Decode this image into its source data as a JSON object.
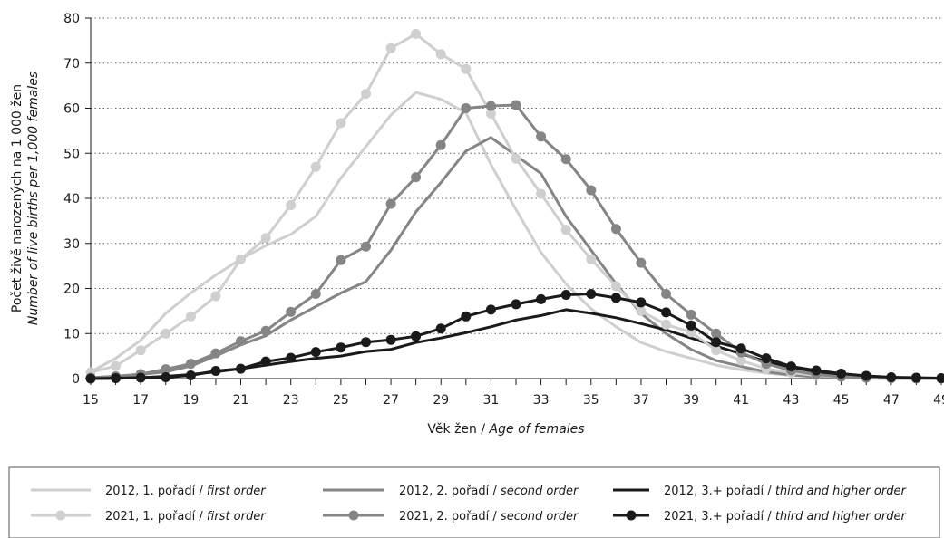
{
  "chart_data": {
    "type": "line",
    "title": "",
    "xlabel_cz": "Věk žen / ",
    "xlabel_en": "Age of females",
    "ylabel_cz": "Počet živě narozených na 1 000 žen",
    "ylabel_en": "Number of live births per 1,000 females",
    "xlim": [
      15,
      49
    ],
    "ylim": [
      0,
      80
    ],
    "xticks": [
      "15",
      "17",
      "19",
      "21",
      "23",
      "25",
      "27",
      "29",
      "31",
      "33",
      "35",
      "37",
      "39",
      "41",
      "43",
      "45",
      "47",
      "49"
    ],
    "yticks": [
      "0",
      "10",
      "20",
      "30",
      "40",
      "50",
      "60",
      "70",
      "80"
    ],
    "grid": "horizontal dotted",
    "legend_position": "bottom",
    "x": [
      15,
      16,
      17,
      18,
      19,
      20,
      21,
      22,
      23,
      24,
      25,
      26,
      27,
      28,
      29,
      30,
      31,
      32,
      33,
      34,
      35,
      36,
      37,
      38,
      39,
      40,
      41,
      42,
      43,
      44,
      45,
      46,
      47,
      48,
      49
    ],
    "series": [
      {
        "name_cz": "2012, 1. pořadí / ",
        "name_en": "first order",
        "color": "#cfcfcf",
        "markers": false,
        "values": [
          1.5,
          4.5,
          8.5,
          14.5,
          19,
          23,
          26.5,
          29.5,
          32,
          36,
          44.5,
          51.5,
          58.5,
          63.5,
          62,
          59,
          47.5,
          37.5,
          28,
          21,
          15.5,
          11.5,
          8,
          6,
          4.5,
          3,
          2,
          1.2,
          0.7,
          0.4,
          0.2,
          0.1,
          0.05,
          0.02,
          0.01
        ]
      },
      {
        "name_cz": "2012, 2. pořadí / ",
        "name_en": "second order",
        "color": "#858585",
        "markers": false,
        "values": [
          0.2,
          0.5,
          0.9,
          1.5,
          2.8,
          5,
          7.5,
          9.5,
          13,
          16,
          19,
          21.5,
          28.5,
          37,
          43.5,
          50.5,
          53.5,
          49.5,
          45.5,
          36,
          28.5,
          21,
          14.5,
          10,
          6.5,
          4,
          2.7,
          1.5,
          0.8,
          0.4,
          0.2,
          0.1,
          0.05,
          0.02,
          0.01
        ]
      },
      {
        "name_cz": "2012, 3.+ pořadí / ",
        "name_en": "third and higher order",
        "color": "#1a1a1a",
        "markers": false,
        "values": [
          0,
          0.05,
          0.2,
          0.5,
          0.9,
          1.5,
          2.2,
          3,
          3.8,
          4.5,
          5,
          6,
          6.5,
          8,
          9,
          10.2,
          11.5,
          13,
          14,
          15.3,
          14.5,
          13.5,
          12.2,
          10.8,
          9,
          7.2,
          5.5,
          3.8,
          2.5,
          1.5,
          0.8,
          0.4,
          0.2,
          0.1,
          0.05
        ]
      },
      {
        "name_cz": "2021, 1. pořadí / ",
        "name_en": "first order",
        "color": "#cfcfcf",
        "markers": true,
        "values": [
          1.4,
          2.8,
          6.3,
          10,
          13.8,
          18.3,
          26.5,
          31.2,
          38.5,
          47,
          56.7,
          63.2,
          73.3,
          76.5,
          72,
          68.7,
          58.8,
          48.8,
          41,
          33,
          26.5,
          20.5,
          15,
          12,
          10.3,
          6.3,
          4,
          2.2,
          1.3,
          0.7,
          0.4,
          0.2,
          0.1,
          0.05,
          0.02
        ]
      },
      {
        "name_cz": "2021, 2. pořadí / ",
        "name_en": "second order",
        "color": "#858585",
        "markers": true,
        "values": [
          0.2,
          0.5,
          1,
          2.1,
          3.3,
          5.6,
          8.3,
          10.6,
          14.8,
          18.8,
          26.3,
          29.3,
          38.8,
          44.7,
          51.8,
          60,
          60.5,
          60.7,
          53.7,
          48.7,
          41.8,
          33.2,
          25.7,
          18.8,
          14.2,
          10,
          5.8,
          3.3,
          1.8,
          0.9,
          0.4,
          0.2,
          0.1,
          0.05,
          0.02
        ]
      },
      {
        "name_cz": "2021, 3.+ pořadí / ",
        "name_en": "third and higher order",
        "color": "#1a1a1a",
        "markers": true,
        "values": [
          0,
          0.1,
          0.2,
          0.3,
          0.7,
          1.7,
          2.2,
          3.8,
          4.6,
          5.9,
          6.9,
          8.1,
          8.6,
          9.4,
          11.1,
          13.8,
          15.3,
          16.5,
          17.6,
          18.6,
          18.8,
          17.9,
          16.9,
          14.7,
          11.8,
          8.1,
          6.7,
          4.5,
          2.7,
          1.8,
          1.1,
          0.6,
          0.3,
          0.2,
          0.1
        ]
      }
    ]
  }
}
